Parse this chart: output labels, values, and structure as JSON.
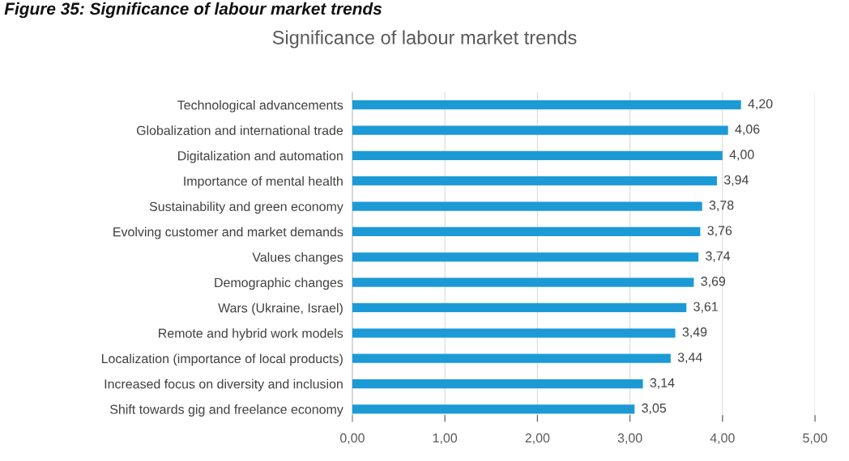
{
  "chart_data": {
    "type": "bar",
    "orientation": "horizontal",
    "title": "Significance of labour market trends",
    "annotations": [
      "Figure 35: Significance of labour market trends"
    ],
    "categories": [
      "Technological advancements",
      "Globalization and international trade",
      "Digitalization and automation",
      "Importance of mental health",
      "Sustainability and green economy",
      "Evolving customer and market demands",
      "Values changes",
      "Demographic changes",
      "Wars (Ukraine, Israel)",
      "Remote and hybrid work models",
      "Localization (importance of local products)",
      "Increased focus on diversity and inclusion",
      "Shift towards gig and freelance economy"
    ],
    "values": [
      4.2,
      4.06,
      4.0,
      3.94,
      3.78,
      3.76,
      3.74,
      3.69,
      3.61,
      3.49,
      3.44,
      3.14,
      3.05
    ],
    "value_labels": [
      "4,20",
      "4,06",
      "4,00",
      "3,94",
      "3,78",
      "3,76",
      "3,74",
      "3,69",
      "3,61",
      "3,49",
      "3,44",
      "3,14",
      "3,05"
    ],
    "color": "#1b9ad6",
    "xlim": [
      0,
      5
    ],
    "xticks": [
      {
        "value": 0,
        "label": "0,00"
      },
      {
        "value": 1,
        "label": "1,00"
      },
      {
        "value": 2,
        "label": "2,00"
      },
      {
        "value": 3,
        "label": "3,00"
      },
      {
        "value": 4,
        "label": "4,00"
      },
      {
        "value": 5,
        "label": "5,00"
      }
    ],
    "grid": "x"
  }
}
